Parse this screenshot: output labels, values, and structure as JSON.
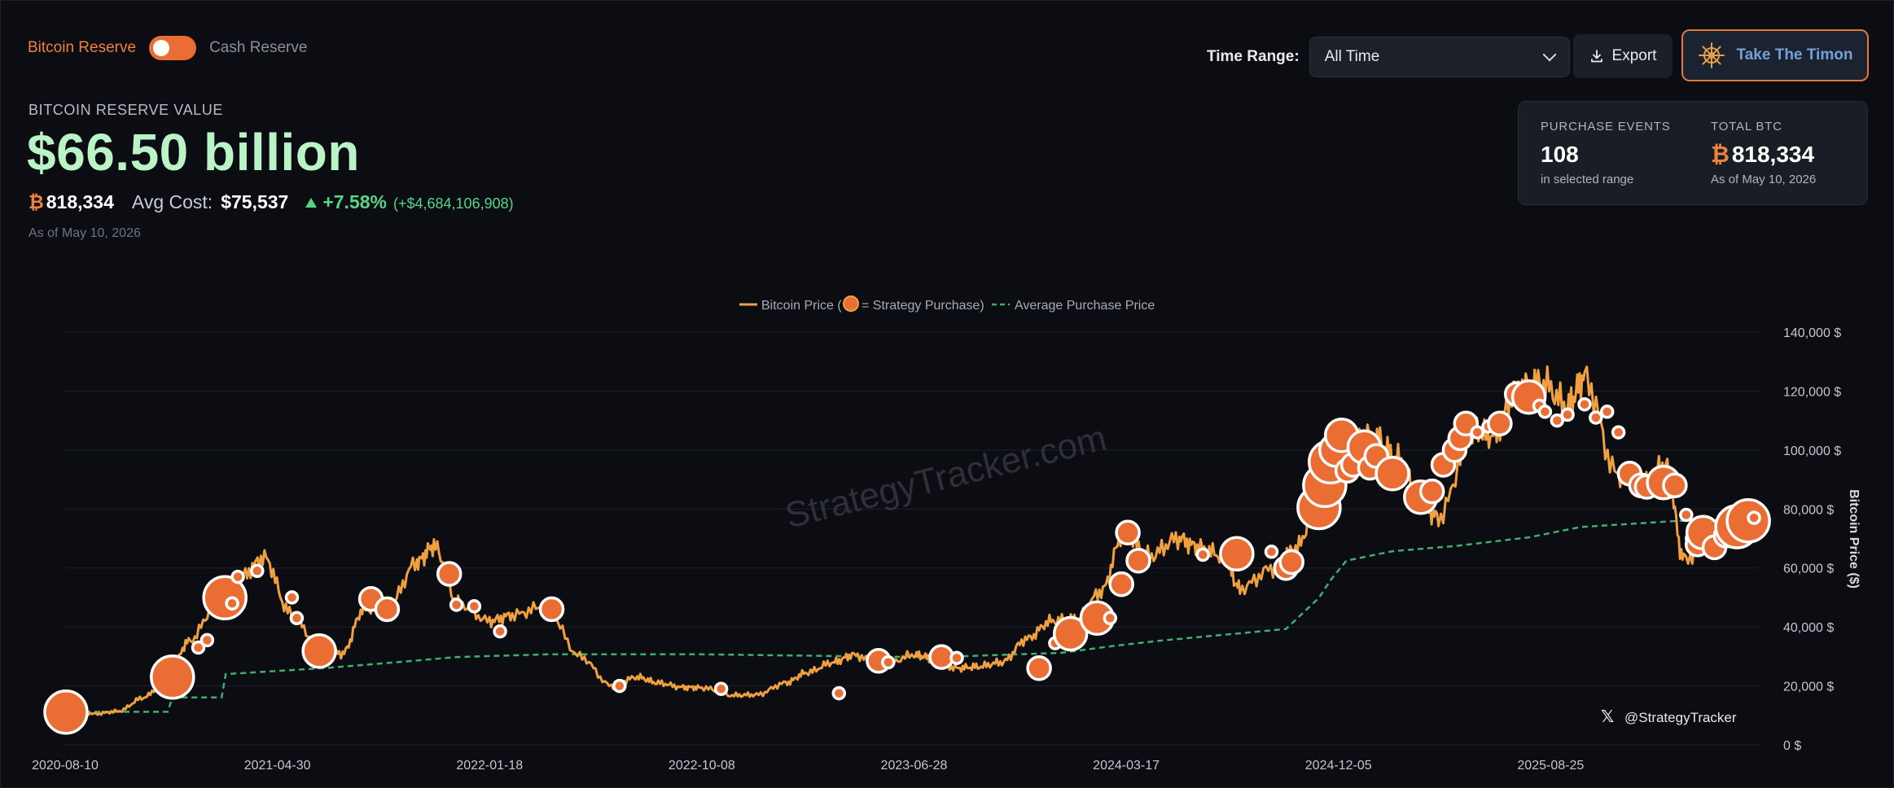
{
  "reserve_toggle": {
    "left_label": "Bitcoin Reserve",
    "right_label": "Cash Reserve",
    "state": "bitcoin"
  },
  "controls": {
    "time_range_label": "Time Range:",
    "time_range_value": "All Time",
    "export_label": "Export",
    "timon_label": "Take The Timon"
  },
  "summary": {
    "title": "BITCOIN RESERVE VALUE",
    "value": "$66.50 billion",
    "btc_symbol": "₿",
    "btc_amount": "818,334",
    "avg_cost_label": "Avg Cost:",
    "avg_cost": "$75,537",
    "change_pct": "+7.58%",
    "change_usd": "(+$4,684,106,908)",
    "as_of": "As of May 10, 2026"
  },
  "stats": {
    "purchase_events_label": "PURCHASE EVENTS",
    "purchase_events": "108",
    "purchase_events_sub": "in selected range",
    "total_btc_label": "TOTAL BTC",
    "total_btc": "818,334",
    "total_btc_sub": "As of May 10, 2026"
  },
  "colors": {
    "accent": "#ea6d34",
    "price_line": "#f0a040",
    "avg_line": "#3fae6e",
    "value_green": "#b9f3c6",
    "background": "#0b0d12"
  },
  "chart_data": {
    "type": "line",
    "legend": {
      "price_label": "Bitcoin Price (",
      "price_label_end": " = Strategy Purchase)",
      "avg_label": "Average Purchase Price",
      "placement": "top-center"
    },
    "ylabel": "Bitcoin Price ($)",
    "ylim": [
      0,
      140000
    ],
    "yticks": [
      {
        "value": 0,
        "label": "0 $"
      },
      {
        "value": 20000,
        "label": "20,000 $"
      },
      {
        "value": 40000,
        "label": "40,000 $"
      },
      {
        "value": 60000,
        "label": "60,000 $"
      },
      {
        "value": 80000,
        "label": "80,000 $"
      },
      {
        "value": 100000,
        "label": "100,000 $"
      },
      {
        "value": 120000,
        "label": "120,000 $"
      },
      {
        "value": 140000,
        "label": "140,000 $"
      }
    ],
    "xlim": [
      "2020-08-10",
      "2026-05-10"
    ],
    "xticks": [
      "2020-08-10",
      "2021-04-30",
      "2022-01-18",
      "2022-10-08",
      "2023-06-28",
      "2024-03-17",
      "2024-12-05",
      "2025-08-25"
    ],
    "grid": true,
    "watermark": "StrategyTracker.com",
    "handle": "@StrategyTracker",
    "series": [
      {
        "name": "Bitcoin Price",
        "x": [
          "2020-08-10",
          "2020-09-15",
          "2020-10-15",
          "2020-11-15",
          "2020-12-15",
          "2021-01-10",
          "2021-02-15",
          "2021-03-15",
          "2021-04-14",
          "2021-05-15",
          "2021-06-20",
          "2021-07-20",
          "2021-08-15",
          "2021-09-15",
          "2021-10-20",
          "2021-11-10",
          "2021-12-10",
          "2022-01-18",
          "2022-02-15",
          "2022-03-28",
          "2022-05-10",
          "2022-06-18",
          "2022-07-20",
          "2022-08-15",
          "2022-09-15",
          "2022-10-08",
          "2022-11-15",
          "2022-12-15",
          "2023-01-20",
          "2023-02-15",
          "2023-03-20",
          "2023-04-14",
          "2023-05-20",
          "2023-06-28",
          "2023-07-20",
          "2023-08-20",
          "2023-09-15",
          "2023-10-15",
          "2023-11-15",
          "2023-12-15",
          "2024-01-15",
          "2024-02-15",
          "2024-03-14",
          "2024-04-15",
          "2024-05-20",
          "2024-06-15",
          "2024-07-15",
          "2024-08-05",
          "2024-09-15",
          "2024-10-15",
          "2024-11-15",
          "2024-12-16",
          "2025-01-20",
          "2025-02-15",
          "2025-03-15",
          "2025-04-08",
          "2025-05-20",
          "2025-06-15",
          "2025-07-14",
          "2025-08-14",
          "2025-09-15",
          "2025-10-06",
          "2025-11-15",
          "2025-12-15",
          "2026-01-15",
          "2026-02-06",
          "2026-03-15",
          "2026-04-15",
          "2026-05-10"
        ],
        "values": [
          11500,
          10500,
          11400,
          16000,
          23000,
          35000,
          48000,
          57000,
          63500,
          45000,
          34000,
          31000,
          46000,
          47000,
          62000,
          67500,
          48000,
          42000,
          44000,
          47000,
          30000,
          20000,
          23000,
          21000,
          19500,
          19400,
          16800,
          17000,
          21000,
          24500,
          28000,
          30500,
          27000,
          30500,
          29500,
          26000,
          26500,
          28000,
          36000,
          42000,
          42500,
          52000,
          72000,
          64000,
          70000,
          67000,
          64000,
          53000,
          60000,
          67000,
          90000,
          106000,
          104000,
          97000,
          84000,
          77000,
          106000,
          105000,
          121000,
          123000,
          115000,
          124500,
          92000,
          87000,
          95000,
          63000,
          70000,
          78000,
          80500
        ]
      },
      {
        "name": "Average Purchase Price",
        "x": [
          "2020-08-10",
          "2020-12-15",
          "2020-12-21",
          "2021-02-20",
          "2021-02-25",
          "2021-06-30",
          "2021-09-10",
          "2021-12-09",
          "2022-03-31",
          "2022-10-08",
          "2023-07-20",
          "2023-12-27",
          "2024-03-05",
          "2024-04-30",
          "2024-10-01",
          "2024-11-11",
          "2024-11-25",
          "2024-12-15",
          "2025-02-10",
          "2025-04-30",
          "2025-07-29",
          "2025-10-01",
          "2026-01-31",
          "2026-03-10",
          "2026-05-10"
        ],
        "values": [
          11200,
          11200,
          16100,
          16100,
          24000,
          26100,
          27700,
          29800,
          30700,
          30700,
          29700,
          31200,
          33700,
          35400,
          39300,
          49900,
          55800,
          62500,
          65700,
          67500,
          70400,
          73900,
          76000,
          76000,
          75537
        ]
      }
    ],
    "purchases": [
      {
        "date": "2020-08-11",
        "price": 11100,
        "size": "xl"
      },
      {
        "date": "2020-12-21",
        "price": 23000,
        "size": "xl"
      },
      {
        "date": "2021-01-22",
        "price": 33000,
        "size": "s"
      },
      {
        "date": "2021-02-02",
        "price": 35500,
        "size": "s"
      },
      {
        "date": "2021-02-24",
        "price": 49900,
        "size": "xl"
      },
      {
        "date": "2021-03-05",
        "price": 48000,
        "size": "s"
      },
      {
        "date": "2021-03-12",
        "price": 57000,
        "size": "s"
      },
      {
        "date": "2021-04-05",
        "price": 59000,
        "size": "s"
      },
      {
        "date": "2021-05-18",
        "price": 50000,
        "size": "s"
      },
      {
        "date": "2021-05-24",
        "price": 43000,
        "size": "s"
      },
      {
        "date": "2021-06-21",
        "price": 31800,
        "size": "l"
      },
      {
        "date": "2021-08-24",
        "price": 49500,
        "size": "m"
      },
      {
        "date": "2021-09-13",
        "price": 46000,
        "size": "m"
      },
      {
        "date": "2021-11-29",
        "price": 58000,
        "size": "m"
      },
      {
        "date": "2021-12-08",
        "price": 47500,
        "size": "s"
      },
      {
        "date": "2021-12-30",
        "price": 47000,
        "size": "s"
      },
      {
        "date": "2022-01-31",
        "price": 38500,
        "size": "s"
      },
      {
        "date": "2022-04-05",
        "price": 46000,
        "size": "m"
      },
      {
        "date": "2022-06-28",
        "price": 20000,
        "size": "s"
      },
      {
        "date": "2022-11-01",
        "price": 19000,
        "size": "s"
      },
      {
        "date": "2023-03-27",
        "price": 17500,
        "size": "s"
      },
      {
        "date": "2023-05-15",
        "price": 28500,
        "size": "m"
      },
      {
        "date": "2023-05-27",
        "price": 28000,
        "size": "s"
      },
      {
        "date": "2023-08-01",
        "price": 29800,
        "size": "m"
      },
      {
        "date": "2023-08-20",
        "price": 29500,
        "size": "s"
      },
      {
        "date": "2023-11-30",
        "price": 26000,
        "size": "m"
      },
      {
        "date": "2023-12-20",
        "price": 34500,
        "size": "s"
      },
      {
        "date": "2024-01-08",
        "price": 37700,
        "size": "l"
      },
      {
        "date": "2024-02-10",
        "price": 43000,
        "size": "l"
      },
      {
        "date": "2024-02-26",
        "price": 43000,
        "size": "s"
      },
      {
        "date": "2024-03-11",
        "price": 54500,
        "size": "m"
      },
      {
        "date": "2024-03-19",
        "price": 72000,
        "size": "m"
      },
      {
        "date": "2024-04-01",
        "price": 62500,
        "size": "m"
      },
      {
        "date": "2024-06-20",
        "price": 64500,
        "size": "s"
      },
      {
        "date": "2024-08-01",
        "price": 64800,
        "size": "l"
      },
      {
        "date": "2024-09-13",
        "price": 65500,
        "size": "s"
      },
      {
        "date": "2024-10-01",
        "price": 60000,
        "size": "m"
      },
      {
        "date": "2024-10-08",
        "price": 62000,
        "size": "m"
      },
      {
        "date": "2024-11-11",
        "price": 80500,
        "size": "xl"
      },
      {
        "date": "2024-11-18",
        "price": 88000,
        "size": "xl"
      },
      {
        "date": "2024-11-25",
        "price": 96000,
        "size": "xl"
      },
      {
        "date": "2024-12-02",
        "price": 100000,
        "size": "l"
      },
      {
        "date": "2024-12-09",
        "price": 105000,
        "size": "l"
      },
      {
        "date": "2024-12-16",
        "price": 93000,
        "size": "m"
      },
      {
        "date": "2024-12-23",
        "price": 95000,
        "size": "m"
      },
      {
        "date": "2025-01-06",
        "price": 101000,
        "size": "l"
      },
      {
        "date": "2025-01-13",
        "price": 94000,
        "size": "m"
      },
      {
        "date": "2025-01-21",
        "price": 98000,
        "size": "m"
      },
      {
        "date": "2025-02-10",
        "price": 92000,
        "size": "l"
      },
      {
        "date": "2025-03-17",
        "price": 84000,
        "size": "l"
      },
      {
        "date": "2025-03-31",
        "price": 86000,
        "size": "m"
      },
      {
        "date": "2025-04-14",
        "price": 95000,
        "size": "m"
      },
      {
        "date": "2025-04-28",
        "price": 100000,
        "size": "m"
      },
      {
        "date": "2025-05-05",
        "price": 104000,
        "size": "m"
      },
      {
        "date": "2025-05-12",
        "price": 109000,
        "size": "m"
      },
      {
        "date": "2025-05-26",
        "price": 106000,
        "size": "s"
      },
      {
        "date": "2025-06-09",
        "price": 108000,
        "size": "s"
      },
      {
        "date": "2025-06-23",
        "price": 109000,
        "size": "m"
      },
      {
        "date": "2025-07-14",
        "price": 119000,
        "size": "m"
      },
      {
        "date": "2025-07-29",
        "price": 118000,
        "size": "l"
      },
      {
        "date": "2025-08-11",
        "price": 115000,
        "size": "s"
      },
      {
        "date": "2025-08-18",
        "price": 113000,
        "size": "s"
      },
      {
        "date": "2025-09-02",
        "price": 110000,
        "size": "s"
      },
      {
        "date": "2025-09-15",
        "price": 112000,
        "size": "s"
      },
      {
        "date": "2025-10-06",
        "price": 115500,
        "size": "s"
      },
      {
        "date": "2025-10-20",
        "price": 111000,
        "size": "s"
      },
      {
        "date": "2025-11-03",
        "price": 113000,
        "size": "s"
      },
      {
        "date": "2025-11-17",
        "price": 106000,
        "size": "s"
      },
      {
        "date": "2025-12-01",
        "price": 92000,
        "size": "m"
      },
      {
        "date": "2025-12-15",
        "price": 88000,
        "size": "m"
      },
      {
        "date": "2025-12-22",
        "price": 87500,
        "size": "m"
      },
      {
        "date": "2026-01-12",
        "price": 89000,
        "size": "l"
      },
      {
        "date": "2026-01-26",
        "price": 88000,
        "size": "m"
      },
      {
        "date": "2026-02-09",
        "price": 78000,
        "size": "s"
      },
      {
        "date": "2026-02-16",
        "price": 70000,
        "size": "s"
      },
      {
        "date": "2026-02-23",
        "price": 68000,
        "size": "m"
      },
      {
        "date": "2026-03-02",
        "price": 72000,
        "size": "l"
      },
      {
        "date": "2026-03-16",
        "price": 67000,
        "size": "m"
      },
      {
        "date": "2026-03-30",
        "price": 71000,
        "size": "m"
      },
      {
        "date": "2026-04-13",
        "price": 74000,
        "size": "xl"
      },
      {
        "date": "2026-04-27",
        "price": 76000,
        "size": "xl"
      },
      {
        "date": "2026-05-04",
        "price": 77000,
        "size": "s"
      }
    ]
  }
}
